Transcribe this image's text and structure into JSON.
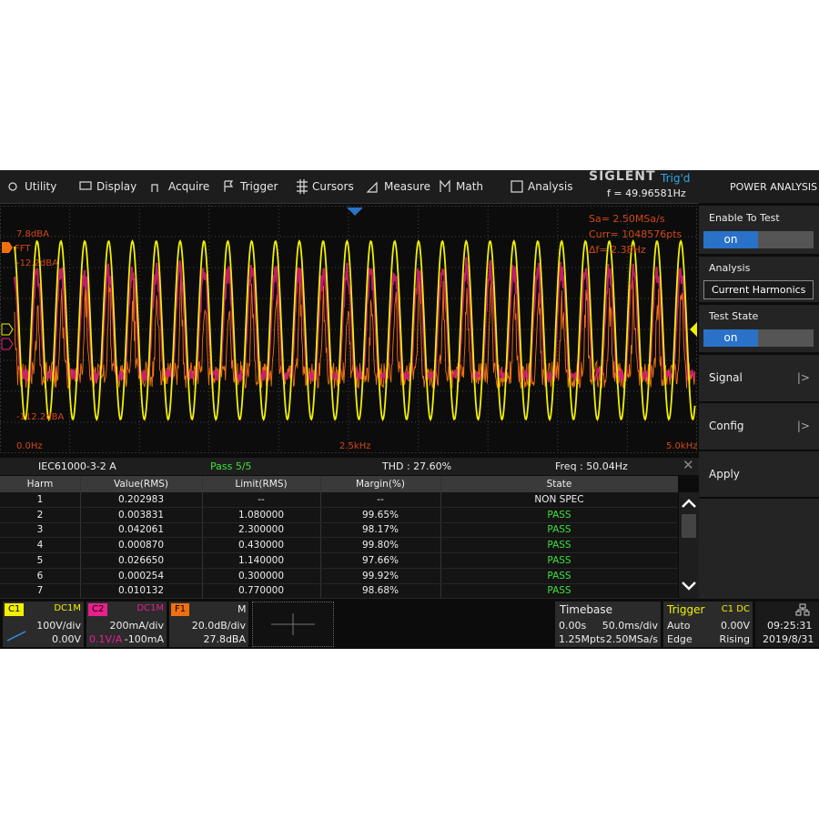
{
  "menu": [
    "Utility",
    "Display",
    "Acquire",
    "Trigger",
    "Cursors",
    "Measure",
    "Math",
    "Analysis"
  ],
  "brand": "SIGLENT",
  "trigger_status": "Trig'd",
  "frequency": "f = 49.96581Hz",
  "panel": {
    "title": "POWER ANALYSIS",
    "enable_label": "Enable To Test",
    "enable_value": "on",
    "analysis_label": "Analysis",
    "analysis_value": "Current Harmonics",
    "state_label": "Test State",
    "state_value": "on",
    "signal": "Signal",
    "config": "Config",
    "apply": "Apply"
  },
  "screen": {
    "top_level": "7.8dBA",
    "fft_label": "FFT",
    "ref_level": "-12.2dBA",
    "bottom_level": "-112.2dBA",
    "x_start": "0.0Hz",
    "x_mid": "2.5kHz",
    "x_end": "5.0kHz",
    "sample_rate": "Sa=  2.50MSa/s",
    "points": "Curr= 1048576pts",
    "resolution": "Δf=  2.38Hz"
  },
  "table": {
    "standard": "IEC61000-3-2 A",
    "result": "Pass 5/5",
    "thd": "THD : 27.60%",
    "freq": "Freq : 50.04Hz",
    "columns": [
      "Harm",
      "Value(RMS)",
      "Limit(RMS)",
      "Margin(%)",
      "State"
    ],
    "rows": [
      [
        "1",
        "0.202983",
        "--",
        "--",
        "NON SPEC"
      ],
      [
        "2",
        "0.003831",
        "1.080000",
        "99.65%",
        "PASS"
      ],
      [
        "3",
        "0.042061",
        "2.300000",
        "98.17%",
        "PASS"
      ],
      [
        "4",
        "0.000870",
        "0.430000",
        "99.80%",
        "PASS"
      ],
      [
        "5",
        "0.026650",
        "1.140000",
        "97.66%",
        "PASS"
      ],
      [
        "6",
        "0.000254",
        "0.300000",
        "99.92%",
        "PASS"
      ],
      [
        "7",
        "0.010132",
        "0.770000",
        "98.68%",
        "PASS"
      ]
    ]
  },
  "status": {
    "c1": {
      "name": "C1",
      "coupling": "DC1M",
      "scale": "100V/div",
      "offset": "0.00V"
    },
    "c2": {
      "name": "C2",
      "coupling": "DC1M",
      "scale": "200mA/div",
      "probe": "0.1V/A",
      "offset": "-100mA"
    },
    "f1": {
      "name": "F1",
      "mode": "M",
      "scale": "20.0dB/div",
      "offset": "27.8dBA"
    },
    "timebase": {
      "title": "Timebase",
      "delay": "0.00s",
      "scale": "50.0ms/div",
      "points": "1.25Mpts",
      "rate": "2.50MSa/s"
    },
    "trigger": {
      "title": "Trigger",
      "source": "C1 DC",
      "mode": "Auto",
      "level": "0.00V",
      "type": "Edge",
      "slope": "Rising"
    },
    "time": "09:25:31",
    "date": "2019/8/31"
  }
}
